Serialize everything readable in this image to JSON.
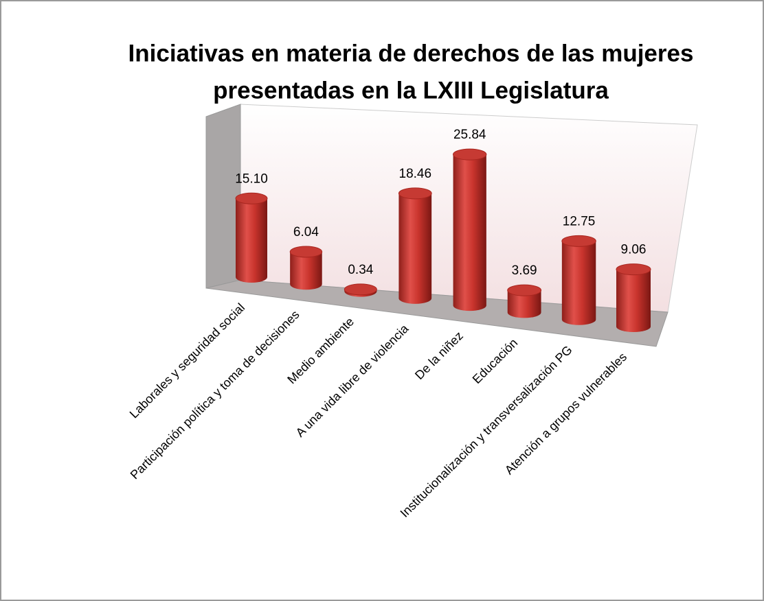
{
  "chart_data": {
    "type": "bar3d",
    "title": [
      "Iniciativas en materia de derechos de las mujeres",
      "presentadas en la LXIII Legislatura"
    ],
    "categories": [
      "Laborales y seguridad social",
      "Participación política y toma de decisiones",
      "Medio ambiente",
      "A una vida libre de violencia",
      "De la niñez",
      "Educación",
      "Institucionalización y transversalización PG",
      "Atención a grupos vulnerables"
    ],
    "values": [
      15.1,
      6.04,
      0.34,
      18.46,
      25.84,
      3.69,
      12.75,
      9.06
    ],
    "value_labels": [
      "15.10",
      "6.04",
      "0.34",
      "18.46",
      "25.84",
      "3.69",
      "12.75",
      "9.06"
    ],
    "color": "#c0392b"
  }
}
